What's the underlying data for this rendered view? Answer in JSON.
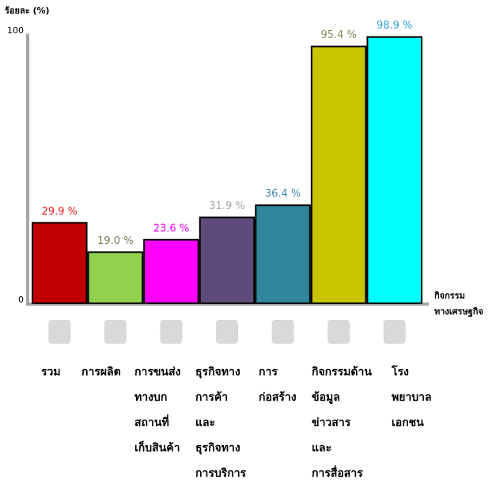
{
  "chart_data": {
    "type": "bar",
    "ylabel": "ร้อยละ (%)",
    "xlabel": [
      "กิจกรรม",
      "ทางเศรษฐกิจ"
    ],
    "categories": [
      [
        "รวม"
      ],
      [
        "การผลิต"
      ],
      [
        "การขนส่ง",
        "ทางบก",
        "สถานที่",
        "เก็บสินค้า"
      ],
      [
        "ธุรกิจทาง",
        "การค้า",
        "และ",
        "ธุรกิจทาง",
        "การบริการ"
      ],
      [
        "การ",
        "ก่อสร้าง"
      ],
      [
        "กิจกรรมด้าน",
        "ข้อมูล",
        "ข่าวสาร",
        "และ",
        "การสื่อสาร"
      ],
      [
        "โรง",
        "พยาบาล",
        "เอกชน"
      ]
    ],
    "values": [
      29.9,
      19.0,
      23.6,
      31.9,
      36.4,
      95.4,
      98.9
    ],
    "value_labels": [
      "29.9 %",
      "19.0 %",
      "23.6 %",
      "31.9 %",
      "36.4 %",
      "95.4 %",
      "98.9 %"
    ],
    "colors": [
      "#c00000",
      "#92d050",
      "#ff00ff",
      "#5f4b7b",
      "#31859c",
      "#c9c400",
      "#00ffff"
    ],
    "value_label_colors": [
      "#e8201c",
      "#7a7a50",
      "#ff00ff",
      "#a6a6a6",
      "#3a86a8",
      "#8a8a5a",
      "#2e9ad6"
    ],
    "ylim": [
      0,
      100
    ],
    "yticks": [
      0,
      100
    ]
  }
}
